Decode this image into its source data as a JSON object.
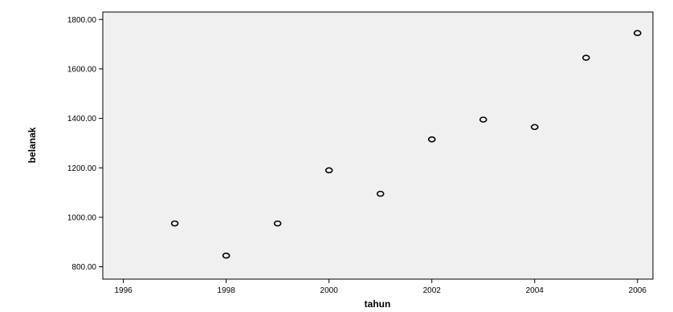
{
  "chart_data": {
    "type": "scatter",
    "title": "",
    "xlabel": "tahun",
    "ylabel": "belanak",
    "xlim": [
      1995.6,
      2006.3
    ],
    "ylim": [
      750,
      1830
    ],
    "xticks": [
      1996,
      1998,
      2000,
      2002,
      2004,
      2006
    ],
    "yticks": [
      800,
      1000,
      1200,
      1400,
      1600,
      1800
    ],
    "xtick_labels": [
      "1996",
      "1998",
      "2000",
      "2002",
      "2004",
      "2006"
    ],
    "ytick_labels": [
      "800.00",
      "1000.00",
      "1200.00",
      "1400.00",
      "1600.00",
      "1800.00"
    ],
    "grid": false,
    "marker": "open-circle",
    "colors": {
      "plot_background": "#f0f0f0",
      "marker_stroke": "#000000",
      "axis": "#000000"
    },
    "points": [
      {
        "x": 1997,
        "y": 975
      },
      {
        "x": 1998,
        "y": 845
      },
      {
        "x": 1999,
        "y": 975
      },
      {
        "x": 2000,
        "y": 1190
      },
      {
        "x": 2001,
        "y": 1095
      },
      {
        "x": 2002,
        "y": 1315
      },
      {
        "x": 2003,
        "y": 1395
      },
      {
        "x": 2004,
        "y": 1365
      },
      {
        "x": 2005,
        "y": 1645
      },
      {
        "x": 2006,
        "y": 1745
      }
    ]
  }
}
